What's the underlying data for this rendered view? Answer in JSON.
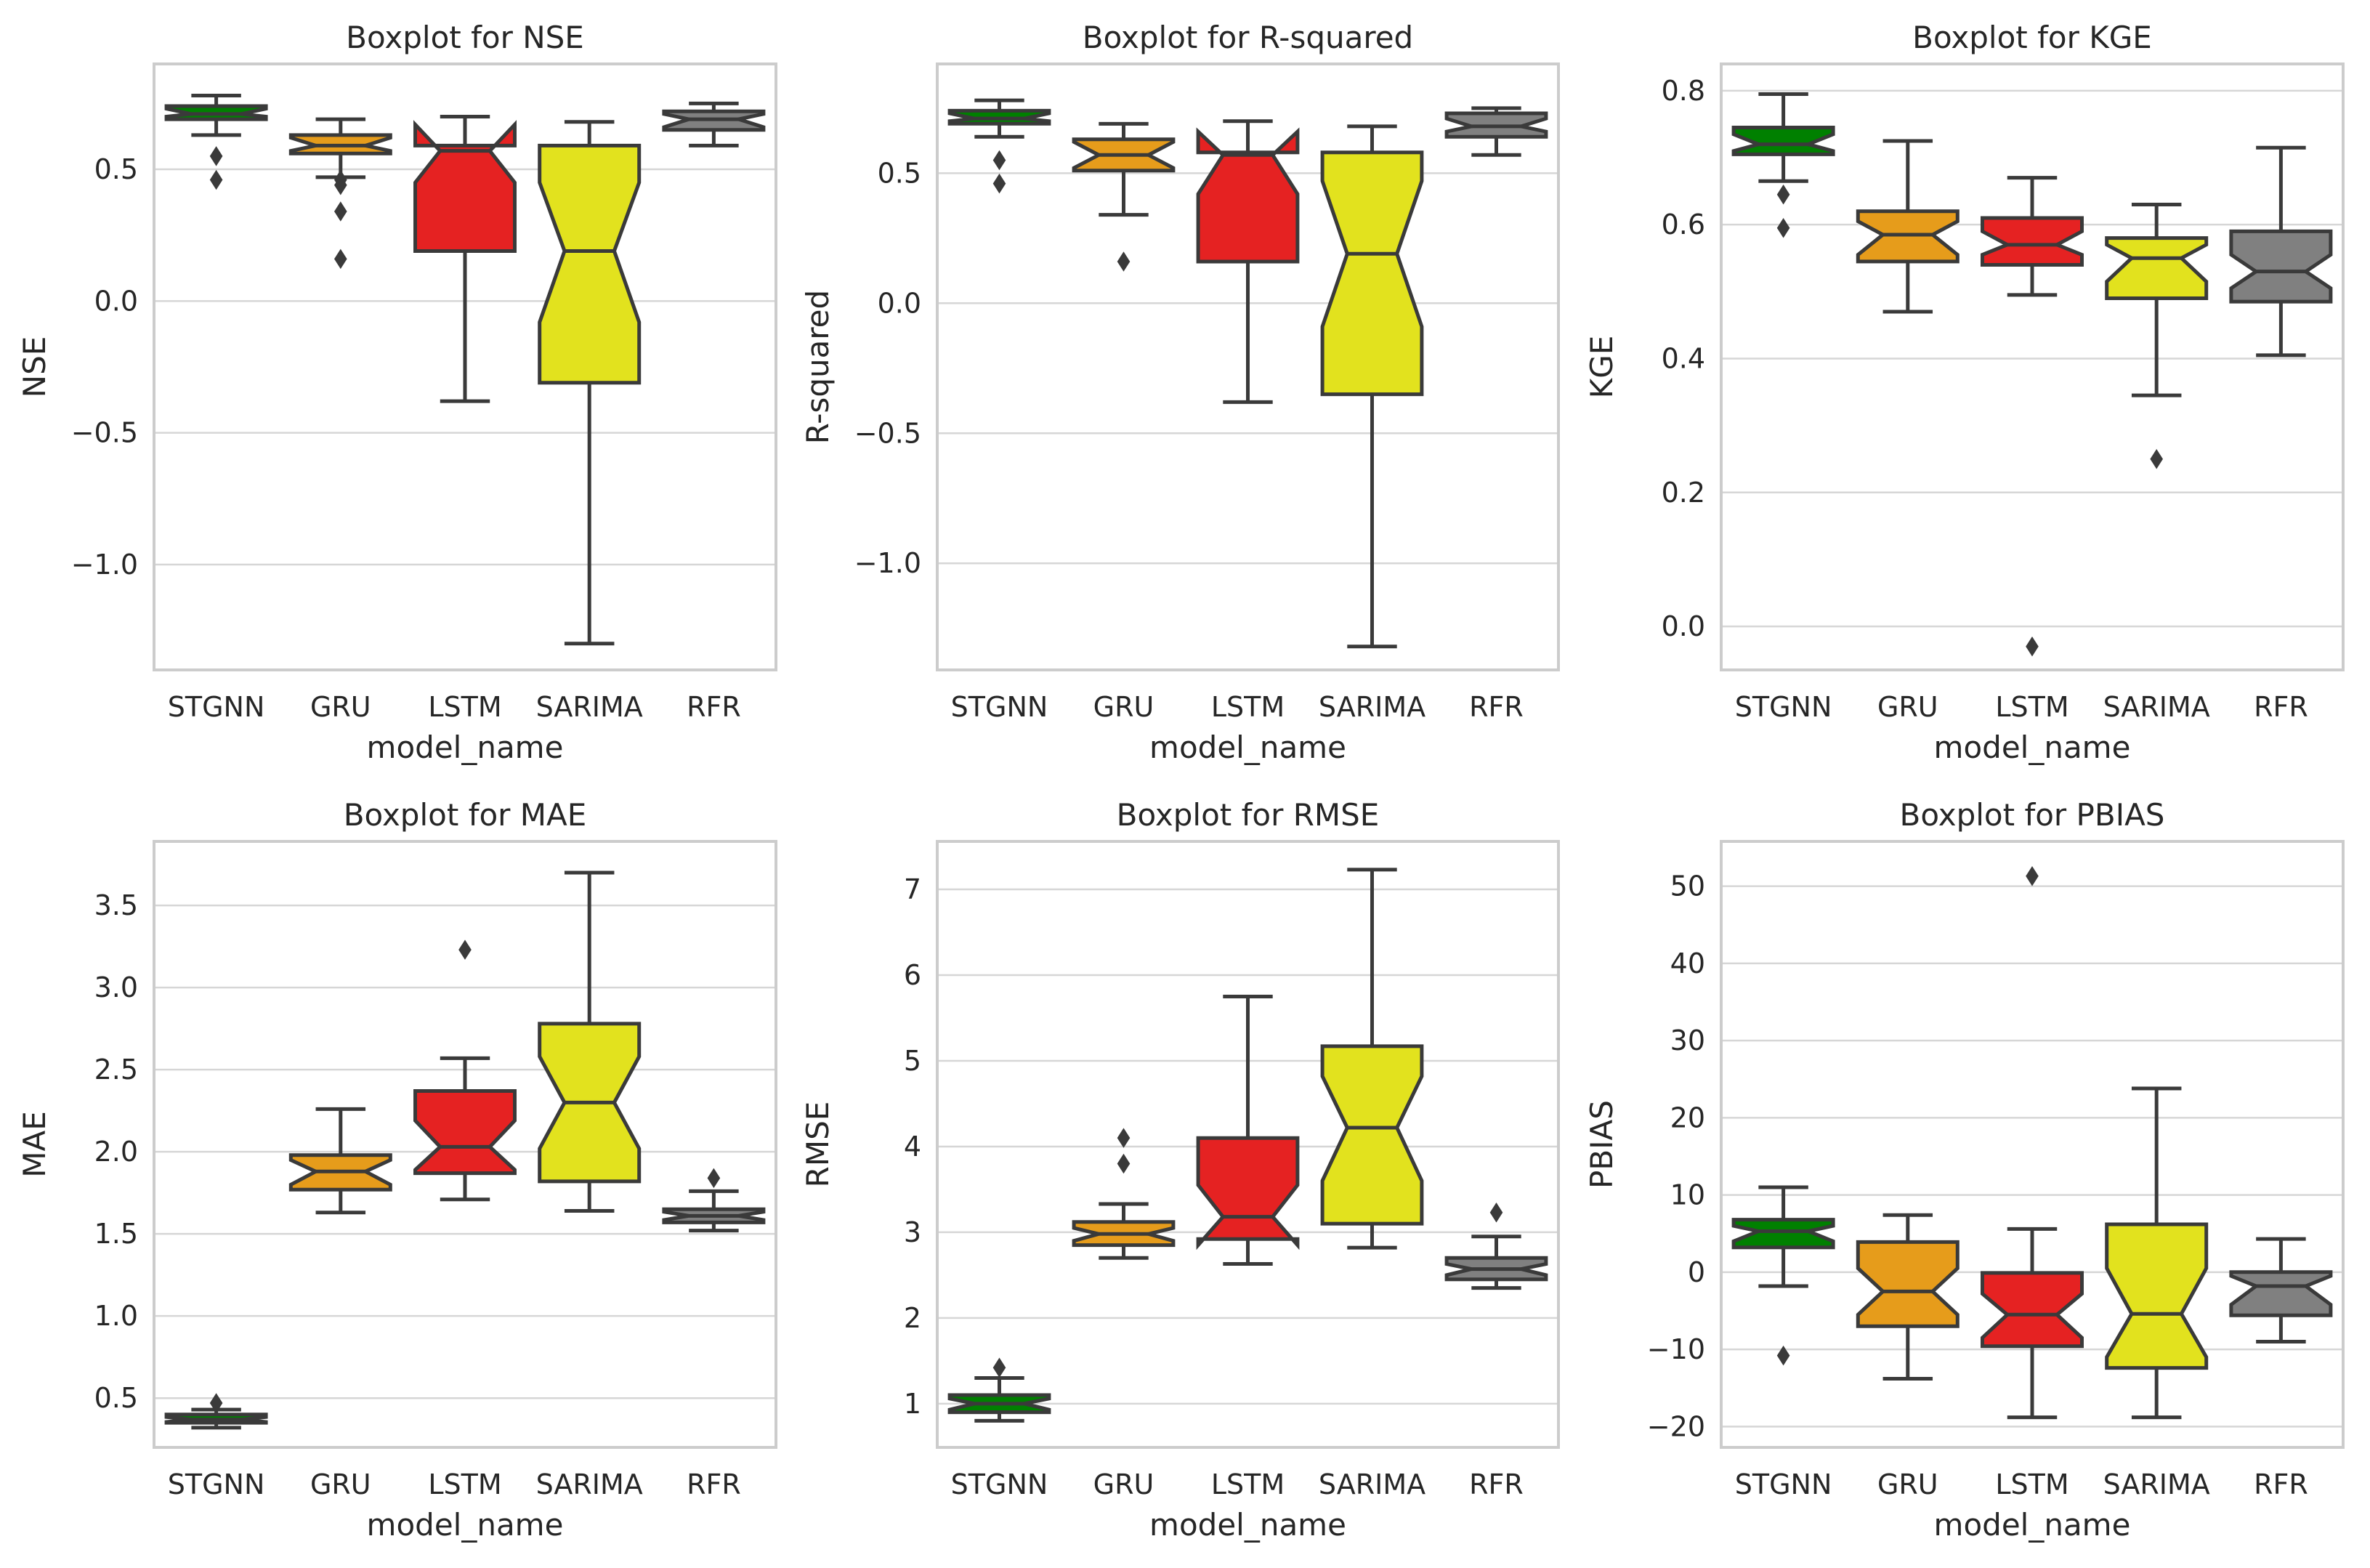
{
  "chart_data": [
    {
      "type": "boxplot",
      "title": "Boxplot for NSE",
      "xlabel": "model_name",
      "ylabel": "NSE",
      "ylim": [
        -1.4,
        0.9
      ],
      "yticks": [
        -1.0,
        -0.5,
        0.0,
        0.5
      ],
      "ytick_labels": [
        "−1.0",
        "−0.5",
        "0.0",
        "0.5"
      ],
      "categories": [
        "STGNN",
        "GRU",
        "LSTM",
        "SARIMA",
        "RFR"
      ],
      "boxes": [
        {
          "model": "STGNN",
          "whisker_low": 0.63,
          "q1": 0.69,
          "notch_low": 0.7,
          "median": 0.71,
          "notch_high": 0.73,
          "q3": 0.74,
          "whisker_high": 0.78,
          "fliers": [
            0.55,
            0.46
          ]
        },
        {
          "model": "GRU",
          "whisker_low": 0.47,
          "q1": 0.56,
          "notch_low": 0.57,
          "median": 0.59,
          "notch_high": 0.62,
          "q3": 0.63,
          "whisker_high": 0.69,
          "fliers": [
            0.46,
            0.44,
            0.34,
            0.16
          ]
        },
        {
          "model": "LSTM",
          "whisker_low": -0.38,
          "q1": 0.19,
          "notch_low": 0.45,
          "median": 0.57,
          "notch_high": 0.67,
          "q3": 0.59,
          "whisker_high": 0.7,
          "fliers": []
        },
        {
          "model": "SARIMA",
          "whisker_low": -1.3,
          "q1": -0.31,
          "notch_low": -0.08,
          "median": 0.19,
          "notch_high": 0.45,
          "q3": 0.59,
          "whisker_high": 0.68,
          "fliers": []
        },
        {
          "model": "RFR",
          "whisker_low": 0.59,
          "q1": 0.65,
          "notch_low": 0.66,
          "median": 0.69,
          "notch_high": 0.71,
          "q3": 0.72,
          "whisker_high": 0.75,
          "fliers": []
        }
      ]
    },
    {
      "type": "boxplot",
      "title": "Boxplot for R-squared",
      "xlabel": "model_name",
      "ylabel": "R-squared",
      "ylim": [
        -1.41,
        0.92
      ],
      "yticks": [
        -1.0,
        -0.5,
        0.0,
        0.5
      ],
      "ytick_labels": [
        "−1.0",
        "−0.5",
        "0.0",
        "0.5"
      ],
      "categories": [
        "STGNN",
        "GRU",
        "LSTM",
        "SARIMA",
        "RFR"
      ],
      "boxes": [
        {
          "model": "STGNN",
          "whisker_low": 0.64,
          "q1": 0.69,
          "notch_low": 0.7,
          "median": 0.71,
          "notch_high": 0.73,
          "q3": 0.74,
          "whisker_high": 0.78,
          "fliers": [
            0.55,
            0.46
          ]
        },
        {
          "model": "GRU",
          "whisker_low": 0.34,
          "q1": 0.51,
          "notch_low": 0.52,
          "median": 0.57,
          "notch_high": 0.62,
          "q3": 0.63,
          "whisker_high": 0.69,
          "fliers": [
            0.16
          ]
        },
        {
          "model": "LSTM",
          "whisker_low": -0.38,
          "q1": 0.16,
          "notch_low": 0.42,
          "median": 0.57,
          "notch_high": 0.66,
          "q3": 0.58,
          "whisker_high": 0.7,
          "fliers": []
        },
        {
          "model": "SARIMA",
          "whisker_low": -1.32,
          "q1": -0.35,
          "notch_low": -0.09,
          "median": 0.19,
          "notch_high": 0.47,
          "q3": 0.58,
          "whisker_high": 0.68,
          "fliers": []
        },
        {
          "model": "RFR",
          "whisker_low": 0.57,
          "q1": 0.64,
          "notch_low": 0.66,
          "median": 0.68,
          "notch_high": 0.71,
          "q3": 0.73,
          "whisker_high": 0.75,
          "fliers": []
        }
      ]
    },
    {
      "type": "boxplot",
      "title": "Boxplot for KGE",
      "xlabel": "model_name",
      "ylabel": "KGE",
      "ylim": [
        -0.065,
        0.84
      ],
      "yticks": [
        0.0,
        0.2,
        0.4,
        0.6,
        0.8
      ],
      "ytick_labels": [
        "0.0",
        "0.2",
        "0.4",
        "0.6",
        "0.8"
      ],
      "categories": [
        "STGNN",
        "GRU",
        "LSTM",
        "SARIMA",
        "RFR"
      ],
      "boxes": [
        {
          "model": "STGNN",
          "whisker_low": 0.665,
          "q1": 0.705,
          "notch_low": 0.71,
          "median": 0.72,
          "notch_high": 0.735,
          "q3": 0.745,
          "whisker_high": 0.795,
          "fliers": [
            0.645,
            0.595
          ]
        },
        {
          "model": "GRU",
          "whisker_low": 0.47,
          "q1": 0.545,
          "notch_low": 0.555,
          "median": 0.585,
          "notch_high": 0.605,
          "q3": 0.62,
          "whisker_high": 0.725,
          "fliers": []
        },
        {
          "model": "LSTM",
          "whisker_low": 0.495,
          "q1": 0.54,
          "notch_low": 0.555,
          "median": 0.57,
          "notch_high": 0.59,
          "q3": 0.61,
          "whisker_high": 0.67,
          "fliers": [
            -0.03
          ]
        },
        {
          "model": "SARIMA",
          "whisker_low": 0.345,
          "q1": 0.49,
          "notch_low": 0.515,
          "median": 0.55,
          "notch_high": 0.57,
          "q3": 0.58,
          "whisker_high": 0.63,
          "fliers": [
            0.25
          ]
        },
        {
          "model": "RFR",
          "whisker_low": 0.405,
          "q1": 0.485,
          "notch_low": 0.505,
          "median": 0.53,
          "notch_high": 0.555,
          "q3": 0.59,
          "whisker_high": 0.715,
          "fliers": []
        }
      ]
    },
    {
      "type": "boxplot",
      "title": "Boxplot for MAE",
      "xlabel": "model_name",
      "ylabel": "MAE",
      "ylim": [
        0.2,
        3.89
      ],
      "yticks": [
        0.5,
        1.0,
        1.5,
        2.0,
        2.5,
        3.0,
        3.5
      ],
      "ytick_labels": [
        "0.5",
        "1.0",
        "1.5",
        "2.0",
        "2.5",
        "3.0",
        "3.5"
      ],
      "categories": [
        "STGNN",
        "GRU",
        "LSTM",
        "SARIMA",
        "RFR"
      ],
      "boxes": [
        {
          "model": "STGNN",
          "whisker_low": 0.32,
          "q1": 0.35,
          "notch_low": 0.355,
          "median": 0.37,
          "notch_high": 0.385,
          "q3": 0.4,
          "whisker_high": 0.43,
          "fliers": [
            0.47
          ]
        },
        {
          "model": "GRU",
          "whisker_low": 1.63,
          "q1": 1.77,
          "notch_low": 1.8,
          "median": 1.88,
          "notch_high": 1.95,
          "q3": 1.98,
          "whisker_high": 2.26,
          "fliers": []
        },
        {
          "model": "LSTM",
          "whisker_low": 1.71,
          "q1": 1.87,
          "notch_low": 1.89,
          "median": 2.03,
          "notch_high": 2.19,
          "q3": 2.37,
          "whisker_high": 2.57,
          "fliers": [
            3.23
          ]
        },
        {
          "model": "SARIMA",
          "whisker_low": 1.64,
          "q1": 1.82,
          "notch_low": 2.02,
          "median": 2.3,
          "notch_high": 2.58,
          "q3": 2.78,
          "whisker_high": 3.7,
          "fliers": []
        },
        {
          "model": "RFR",
          "whisker_low": 1.52,
          "q1": 1.57,
          "notch_low": 1.585,
          "median": 1.61,
          "notch_high": 1.635,
          "q3": 1.65,
          "whisker_high": 1.76,
          "fliers": [
            1.84
          ]
        }
      ]
    },
    {
      "type": "boxplot",
      "title": "Boxplot for RMSE",
      "xlabel": "model_name",
      "ylabel": "RMSE",
      "ylim": [
        0.49,
        7.56
      ],
      "yticks": [
        1,
        2,
        3,
        4,
        5,
        6,
        7
      ],
      "ytick_labels": [
        "1",
        "2",
        "3",
        "4",
        "5",
        "6",
        "7"
      ],
      "categories": [
        "STGNN",
        "GRU",
        "LSTM",
        "SARIMA",
        "RFR"
      ],
      "boxes": [
        {
          "model": "STGNN",
          "whisker_low": 0.8,
          "q1": 0.9,
          "notch_low": 0.93,
          "median": 1.0,
          "notch_high": 1.06,
          "q3": 1.1,
          "whisker_high": 1.3,
          "fliers": [
            1.42
          ]
        },
        {
          "model": "GRU",
          "whisker_low": 2.7,
          "q1": 2.85,
          "notch_low": 2.9,
          "median": 2.98,
          "notch_high": 3.05,
          "q3": 3.12,
          "whisker_high": 3.33,
          "fliers": [
            3.8,
            4.1
          ]
        },
        {
          "model": "LSTM",
          "whisker_low": 2.63,
          "q1": 2.92,
          "notch_low": 2.85,
          "median": 3.18,
          "notch_high": 3.55,
          "q3": 4.1,
          "whisker_high": 5.75,
          "fliers": []
        },
        {
          "model": "SARIMA",
          "whisker_low": 2.82,
          "q1": 3.1,
          "notch_low": 3.6,
          "median": 4.22,
          "notch_high": 4.82,
          "q3": 5.17,
          "whisker_high": 7.23,
          "fliers": []
        },
        {
          "model": "RFR",
          "whisker_low": 2.35,
          "q1": 2.45,
          "notch_low": 2.5,
          "median": 2.57,
          "notch_high": 2.63,
          "q3": 2.7,
          "whisker_high": 2.95,
          "fliers": [
            3.23
          ]
        }
      ]
    },
    {
      "type": "boxplot",
      "title": "Boxplot for PBIAS",
      "xlabel": "model_name",
      "ylabel": "PBIAS",
      "ylim": [
        -22.7,
        55.8
      ],
      "yticks": [
        -20,
        -10,
        0,
        10,
        20,
        30,
        40,
        50
      ],
      "ytick_labels": [
        "−20",
        "−10",
        "0",
        "10",
        "20",
        "30",
        "40",
        "50"
      ],
      "categories": [
        "STGNN",
        "GRU",
        "LSTM",
        "SARIMA",
        "RFR"
      ],
      "boxes": [
        {
          "model": "STGNN",
          "whisker_low": -1.8,
          "q1": 3.2,
          "notch_low": 4.0,
          "median": 5.3,
          "notch_high": 6.0,
          "q3": 6.8,
          "whisker_high": 11.0,
          "fliers": [
            -10.8
          ]
        },
        {
          "model": "GRU",
          "whisker_low": -13.8,
          "q1": -7.0,
          "notch_low": -5.5,
          "median": -2.5,
          "notch_high": 0.5,
          "q3": 3.9,
          "whisker_high": 7.4,
          "fliers": []
        },
        {
          "model": "LSTM",
          "whisker_low": -18.8,
          "q1": -9.6,
          "notch_low": -8.5,
          "median": -5.5,
          "notch_high": -2.8,
          "q3": -0.1,
          "whisker_high": 5.6,
          "fliers": [
            51.3
          ]
        },
        {
          "model": "SARIMA",
          "whisker_low": -18.8,
          "q1": -12.4,
          "notch_low": -11.0,
          "median": -5.4,
          "notch_high": 0.5,
          "q3": 6.2,
          "whisker_high": 23.8,
          "fliers": []
        },
        {
          "model": "RFR",
          "whisker_low": -9.0,
          "q1": -5.6,
          "notch_low": -4.2,
          "median": -1.8,
          "notch_high": -0.5,
          "q3": 0.0,
          "whisker_high": 4.3,
          "fliers": []
        }
      ]
    }
  ],
  "colors": {
    "STGNN": "#008000",
    "GRU": "#e69c1b",
    "LSTM": "#e52222",
    "SARIMA": "#e2e21e",
    "RFR": "#808080"
  }
}
